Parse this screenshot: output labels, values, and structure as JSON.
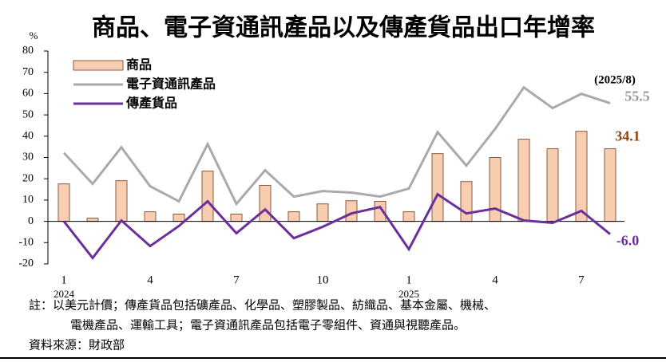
{
  "chart_data": {
    "type": "bar_line",
    "title": "商品、電子資通訊產品以及傳產貨品出口年增率",
    "y_unit": "%",
    "annotation": "(2025/8)",
    "categories": [
      "1",
      null,
      null,
      "4",
      null,
      null,
      "7",
      null,
      null,
      "10",
      null,
      null,
      "1",
      null,
      null,
      "4",
      null,
      null,
      "7",
      null
    ],
    "years": [
      "2024",
      null,
      null,
      null,
      null,
      null,
      null,
      null,
      null,
      null,
      null,
      null,
      "2025",
      null,
      null,
      null,
      null,
      null,
      null,
      null
    ],
    "ylim": [
      -20,
      80
    ],
    "yticks": [
      -20,
      -10,
      0,
      10,
      20,
      30,
      40,
      50,
      60,
      70,
      80
    ],
    "series": [
      {
        "name": "商品",
        "kind": "bar",
        "color": "#f6cdb0",
        "edge": "#8b5a3c",
        "label_color": "#8b4513",
        "values": [
          17.6,
          1.5,
          19.1,
          4.5,
          3.4,
          23.6,
          3.4,
          16.9,
          4.5,
          8.2,
          9.7,
          9.4,
          4.5,
          31.8,
          18.7,
          30.0,
          38.6,
          34.1,
          42.3,
          34.1
        ]
      },
      {
        "name": "電子資通訊產品",
        "kind": "line",
        "color": "#aaaaaa",
        "label_color": "#999999",
        "values": [
          32.2,
          17.6,
          34.8,
          16.5,
          9.4,
          36.3,
          8.2,
          24.0,
          11.6,
          14.2,
          13.5,
          11.6,
          15.4,
          41.9,
          26.2,
          43.4,
          62.9,
          53.2,
          59.9,
          55.5
        ]
      },
      {
        "name": "傳產貨品",
        "kind": "line",
        "color": "#6a2f9b",
        "label_color": "#6a2f9b",
        "values": [
          0,
          -17.2,
          0.4,
          -11.6,
          -2.2,
          9.4,
          -5.6,
          5.6,
          -7.9,
          -2.6,
          3.7,
          6.7,
          -13.1,
          12.7,
          3.7,
          6.0,
          0.4,
          -0.7,
          4.9,
          -6
        ],
        "value_labels": [
          null,
          null,
          null,
          null,
          null,
          null,
          null,
          null,
          null,
          null,
          null,
          null,
          null,
          null,
          null,
          null,
          null,
          null,
          null,
          "-6.0"
        ]
      }
    ],
    "notes": [
      "註：以美元計價；傳產貨品包括礦產品、化學品、塑膠製品、紡織品、基本金屬、機械、",
      "電機產品、運輸工具；電子資通訊產品包括電子零組件、資通與視聽產品。"
    ],
    "source": "資料來源：財政部"
  }
}
